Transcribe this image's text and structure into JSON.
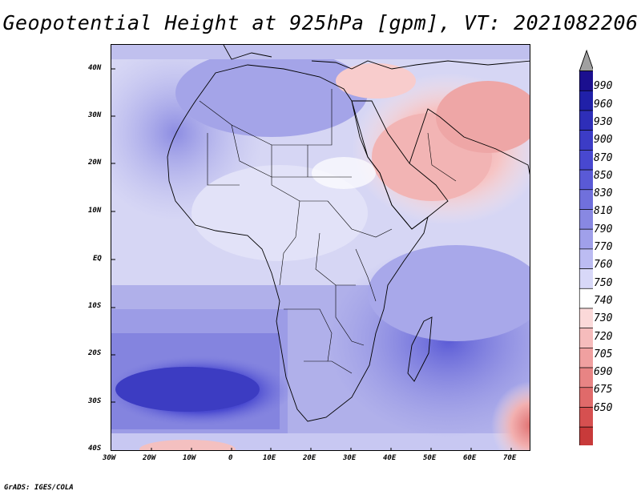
{
  "title": "Geopotential Height at 925hPa [gpm], VT: 2021082206",
  "footer": "GrADS: IGES/COLA",
  "map": {
    "lon_labels": [
      "30W",
      "20W",
      "10W",
      "0",
      "10E",
      "20E",
      "30E",
      "40E",
      "50E",
      "60E",
      "70E"
    ],
    "lat_labels": [
      "40N",
      "30N",
      "20N",
      "10N",
      "EQ",
      "10S",
      "20S",
      "30S",
      "40S"
    ],
    "background_color": "#dcdcf5",
    "ocean_high_color": "#b3b3ea",
    "ocean_low_color": "#4a4ad0",
    "hot_low_color": "#f0a8a8"
  },
  "colorbar": {
    "labels": [
      "990",
      "960",
      "930",
      "900",
      "870",
      "850",
      "830",
      "810",
      "790",
      "770",
      "760",
      "750",
      "740",
      "730",
      "720",
      "705",
      "690",
      "675",
      "650"
    ],
    "colors": [
      "#1b0f8f",
      "#2020a8",
      "#2e2eb8",
      "#3c3cc6",
      "#4848d0",
      "#5a5ad6",
      "#7070dc",
      "#8888e2",
      "#a0a0ea",
      "#bcbcf2",
      "#d8d8f8",
      "#ffffff",
      "#fbd9d9",
      "#f6bcbc",
      "#f0a0a0",
      "#e88484",
      "#e06a6a",
      "#d65050",
      "#c83a3a",
      "#b82a2a"
    ],
    "top_arrow_color": "#a0a0a0"
  }
}
